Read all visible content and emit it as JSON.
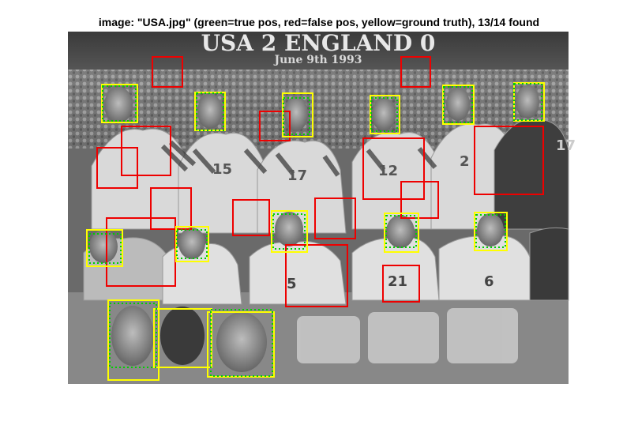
{
  "figure": {
    "title": "image: \"USA.jpg\" (green=true pos, red=false pos, yellow=ground truth), 13/14 found"
  },
  "photo": {
    "banner_text": "USA 2 ENGLAND 0",
    "banner_subtext": "June 9th 1993",
    "jersey_numbers": [
      "15",
      "17",
      "12",
      "2",
      "21",
      "5",
      "6",
      "17"
    ]
  },
  "legend_colors": {
    "true_positive": "#00d000",
    "false_positive": "#ee0000",
    "ground_truth": "#ffff00"
  },
  "detections": {
    "found": 13,
    "total": 14
  }
}
